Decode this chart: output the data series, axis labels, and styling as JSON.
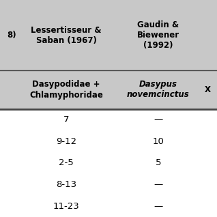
{
  "bg_color": "#d3d3d3",
  "white_bg": "#ffffff",
  "header1_text_col1": "Lessertisseur &\nSaban (1967)",
  "header1_text_col2": "Gaudin &\nBiewener\n(1992)",
  "header2_text_col1": "Dasypodidae +\nChlamyphoridae",
  "header2_text_col2": "Dasypus\nnovemcinctus",
  "header2_text_col3": "X",
  "left_partial": "8)",
  "data_col1": [
    "7",
    "9-12",
    "2-5",
    "8-13",
    "11-23"
  ],
  "data_col2": [
    "—",
    "10",
    "5",
    "—",
    "—"
  ],
  "header1_fontsize": 8.5,
  "header2_fontsize": 8.5,
  "data_fontsize": 9.5,
  "line_color": "#444444",
  "header_bg": "#c8c8c8"
}
